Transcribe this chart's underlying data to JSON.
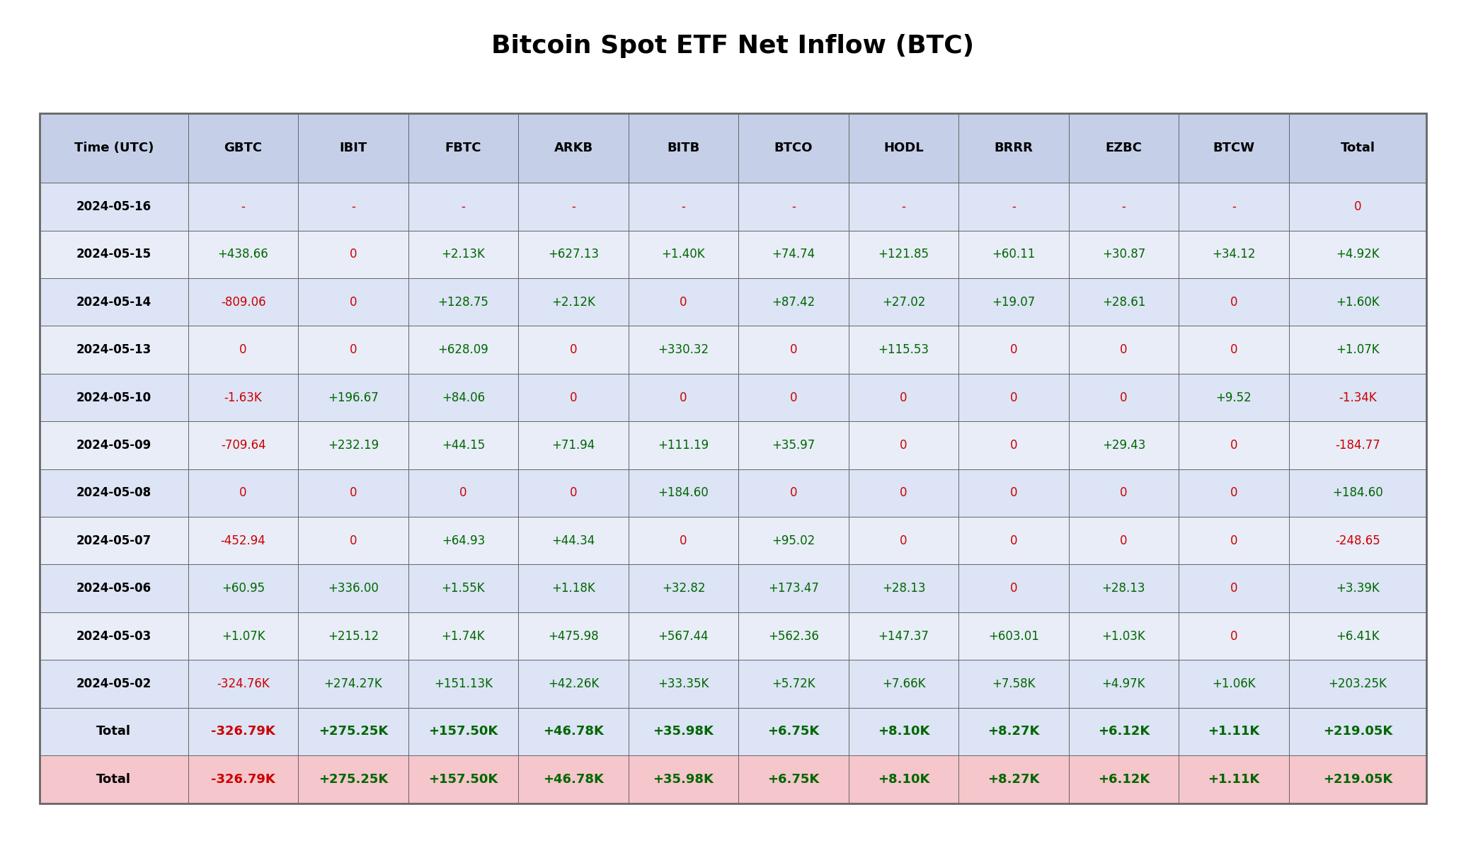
{
  "title": "Bitcoin Spot ETF Net Inflow (BTC)",
  "columns": [
    "Time (UTC)",
    "GBTC",
    "IBIT",
    "FBTC",
    "ARKB",
    "BITB",
    "BTCO",
    "HODL",
    "BRRR",
    "EZBC",
    "BTCW",
    "Total"
  ],
  "rows": [
    [
      "2024-05-16",
      "-",
      "-",
      "-",
      "-",
      "-",
      "-",
      "-",
      "-",
      "-",
      "-",
      "0"
    ],
    [
      "2024-05-15",
      "+438.66",
      "0",
      "+2.13K",
      "+627.13",
      "+1.40K",
      "+74.74",
      "+121.85",
      "+60.11",
      "+30.87",
      "+34.12",
      "+4.92K"
    ],
    [
      "2024-05-14",
      "-809.06",
      "0",
      "+128.75",
      "+2.12K",
      "0",
      "+87.42",
      "+27.02",
      "+19.07",
      "+28.61",
      "0",
      "+1.60K"
    ],
    [
      "2024-05-13",
      "0",
      "0",
      "+628.09",
      "0",
      "+330.32",
      "0",
      "+115.53",
      "0",
      "0",
      "0",
      "+1.07K"
    ],
    [
      "2024-05-10",
      "-1.63K",
      "+196.67",
      "+84.06",
      "0",
      "0",
      "0",
      "0",
      "0",
      "0",
      "+9.52",
      "-1.34K"
    ],
    [
      "2024-05-09",
      "-709.64",
      "+232.19",
      "+44.15",
      "+71.94",
      "+111.19",
      "+35.97",
      "0",
      "0",
      "+29.43",
      "0",
      "-184.77"
    ],
    [
      "2024-05-08",
      "0",
      "0",
      "0",
      "0",
      "+184.60",
      "0",
      "0",
      "0",
      "0",
      "0",
      "+184.60"
    ],
    [
      "2024-05-07",
      "-452.94",
      "0",
      "+64.93",
      "+44.34",
      "0",
      "+95.02",
      "0",
      "0",
      "0",
      "0",
      "-248.65"
    ],
    [
      "2024-05-06",
      "+60.95",
      "+336.00",
      "+1.55K",
      "+1.18K",
      "+32.82",
      "+173.47",
      "+28.13",
      "0",
      "+28.13",
      "0",
      "+3.39K"
    ],
    [
      "2024-05-03",
      "+1.07K",
      "+215.12",
      "+1.74K",
      "+475.98",
      "+567.44",
      "+562.36",
      "+147.37",
      "+603.01",
      "+1.03K",
      "0",
      "+6.41K"
    ],
    [
      "2024-05-02",
      "-324.76K",
      "+274.27K",
      "+151.13K",
      "+42.26K",
      "+33.35K",
      "+5.72K",
      "+7.66K",
      "+7.58K",
      "+4.97K",
      "+1.06K",
      "+203.25K"
    ]
  ],
  "total_row": [
    "Total",
    "-326.79K",
    "+275.25K",
    "+157.50K",
    "+46.78K",
    "+35.98K",
    "+6.75K",
    "+8.10K",
    "+8.27K",
    "+6.12K",
    "+1.11K",
    "+219.05K"
  ],
  "total_row2": [
    "Total",
    "-326.79K",
    "+275.25K",
    "+157.50K",
    "+46.78K",
    "+35.98K",
    "+6.75K",
    "+8.10K",
    "+8.27K",
    "+6.12K",
    "+1.11K",
    "+219.05K"
  ],
  "header_bg": "#c5cfe8",
  "row_bg_even": "#dce4f5",
  "row_bg_odd": "#e8edf8",
  "total_bg": "#dce4f5",
  "total2_bg": "#f5c6cb",
  "neg_color": "#cc0000",
  "pos_color": "#006600",
  "zero_dash_color": "#cc0000",
  "header_text_color": "#000000",
  "title_fontsize": 26,
  "header_fontsize": 13,
  "cell_fontsize": 12,
  "total_fontsize": 13,
  "border_color": "#666666",
  "col_widths_rel": [
    1.35,
    1.0,
    1.0,
    1.0,
    1.0,
    1.0,
    1.0,
    1.0,
    1.0,
    1.0,
    1.0,
    1.25
  ]
}
